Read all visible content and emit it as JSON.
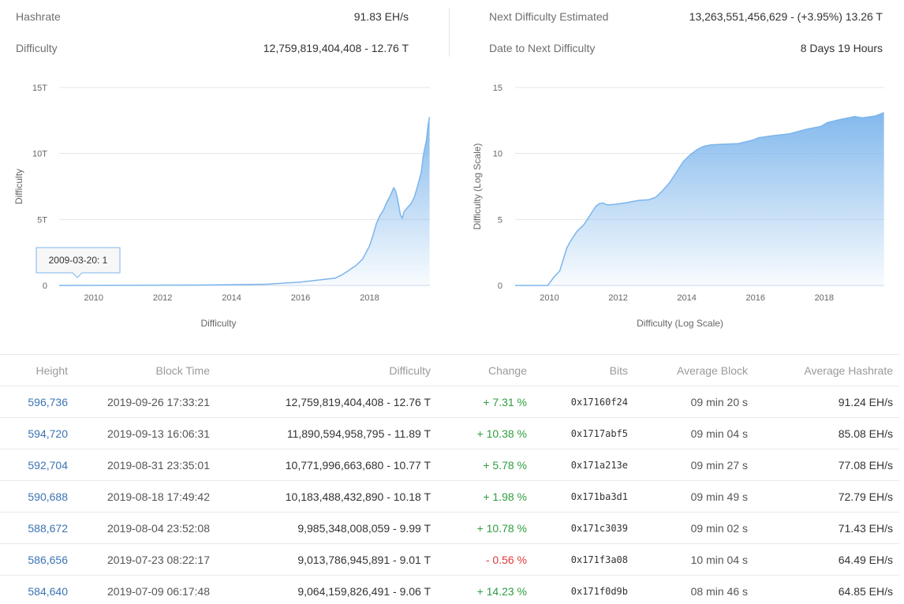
{
  "stats": {
    "hashrate_label": "Hashrate",
    "hashrate_value": "91.83 EH/s",
    "difficulty_label": "Difficulty",
    "difficulty_value": "12,759,819,404,408 - 12.76 T",
    "next_label": "Next Difficulty Estimated",
    "next_value": "13,263,551,456,629 - (+3.95%) 13.26 T",
    "date_label": "Date to Next Difficulty",
    "date_value": "8 Days 19 Hours"
  },
  "chart_data": [
    {
      "type": "area",
      "title": "",
      "ylabel": "Difficulty",
      "xlabel": "Difficulty",
      "xlim": [
        2009.0,
        2019.75
      ],
      "ylim": [
        0,
        15
      ],
      "y_ticks": [
        "0",
        "5T",
        "10T",
        "15T"
      ],
      "x_ticks": [
        "2010",
        "2012",
        "2014",
        "2016",
        "2018"
      ],
      "tooltip": "2009-03-20: 1",
      "series": [
        {
          "x": [
            2009.0,
            2013.0,
            2015.0,
            2016.0,
            2016.5,
            2017.0,
            2017.2,
            2017.4,
            2017.6,
            2017.8,
            2017.9,
            2018.0,
            2018.1,
            2018.2,
            2018.3,
            2018.4,
            2018.5,
            2018.6,
            2018.7,
            2018.75,
            2018.8,
            2018.85,
            2018.9,
            2018.95,
            2019.0,
            2019.1,
            2019.2,
            2019.3,
            2019.4,
            2019.5,
            2019.55,
            2019.6,
            2019.65,
            2019.7,
            2019.74
          ],
          "values": [
            0,
            0.03,
            0.09,
            0.25,
            0.4,
            0.55,
            0.8,
            1.15,
            1.5,
            2.0,
            2.5,
            3.0,
            3.8,
            4.7,
            5.3,
            5.7,
            6.3,
            6.8,
            7.4,
            7.2,
            6.7,
            6.0,
            5.3,
            5.1,
            5.6,
            5.9,
            6.2,
            6.7,
            7.6,
            8.6,
            9.7,
            10.4,
            11.0,
            12.2,
            12.76
          ]
        }
      ]
    },
    {
      "type": "area",
      "title": "",
      "ylabel": "Difficulty (Log Scale)",
      "xlabel": "Difficulty (Log Scale)",
      "xlim": [
        2009.0,
        2019.75
      ],
      "ylim": [
        0,
        15
      ],
      "y_ticks": [
        "0",
        "5",
        "10",
        "15"
      ],
      "x_ticks": [
        "2010",
        "2012",
        "2014",
        "2016",
        "2018"
      ],
      "series": [
        {
          "x": [
            2009.0,
            2009.95,
            2010.15,
            2010.3,
            2010.5,
            2010.6,
            2010.8,
            2011.0,
            2011.2,
            2011.35,
            2011.45,
            2011.55,
            2011.7,
            2011.9,
            2012.2,
            2012.6,
            2012.9,
            2013.1,
            2013.3,
            2013.5,
            2013.7,
            2013.9,
            2014.1,
            2014.3,
            2014.5,
            2014.7,
            2015.0,
            2015.5,
            2015.9,
            2016.1,
            2016.5,
            2017.0,
            2017.5,
            2017.9,
            2018.1,
            2018.5,
            2018.9,
            2019.1,
            2019.5,
            2019.74
          ],
          "values": [
            0,
            0,
            0.7,
            1.1,
            2.8,
            3.3,
            4.1,
            4.6,
            5.4,
            6.0,
            6.2,
            6.25,
            6.1,
            6.15,
            6.25,
            6.45,
            6.5,
            6.7,
            7.2,
            7.8,
            8.6,
            9.4,
            9.9,
            10.3,
            10.55,
            10.65,
            10.7,
            10.75,
            11.0,
            11.2,
            11.35,
            11.5,
            11.85,
            12.05,
            12.35,
            12.6,
            12.8,
            12.7,
            12.85,
            13.1
          ]
        }
      ]
    }
  ],
  "table": {
    "headers": {
      "height": "Height",
      "time": "Block Time",
      "difficulty": "Difficulty",
      "change": "Change",
      "bits": "Bits",
      "avg_block": "Average Block",
      "avg_hash": "Average Hashrate"
    },
    "rows": [
      {
        "height": "596,736",
        "time": "2019-09-26 17:33:21",
        "difficulty": "12,759,819,404,408 - 12.76 T",
        "change": "+ 7.31 %",
        "change_dir": "pos",
        "bits": "0x17160f24",
        "avg_block": "09 min 20 s",
        "avg_hash": "91.24 EH/s"
      },
      {
        "height": "594,720",
        "time": "2019-09-13 16:06:31",
        "difficulty": "11,890,594,958,795 - 11.89 T",
        "change": "+ 10.38 %",
        "change_dir": "pos",
        "bits": "0x1717abf5",
        "avg_block": "09 min 04 s",
        "avg_hash": "85.08 EH/s"
      },
      {
        "height": "592,704",
        "time": "2019-08-31 23:35:01",
        "difficulty": "10,771,996,663,680 - 10.77 T",
        "change": "+ 5.78 %",
        "change_dir": "pos",
        "bits": "0x171a213e",
        "avg_block": "09 min 27 s",
        "avg_hash": "77.08 EH/s"
      },
      {
        "height": "590,688",
        "time": "2019-08-18 17:49:42",
        "difficulty": "10,183,488,432,890 - 10.18 T",
        "change": "+ 1.98 %",
        "change_dir": "pos",
        "bits": "0x171ba3d1",
        "avg_block": "09 min 49 s",
        "avg_hash": "72.79 EH/s"
      },
      {
        "height": "588,672",
        "time": "2019-08-04 23:52:08",
        "difficulty": "9,985,348,008,059 - 9.99 T",
        "change": "+ 10.78 %",
        "change_dir": "pos",
        "bits": "0x171c3039",
        "avg_block": "09 min 02 s",
        "avg_hash": "71.43 EH/s"
      },
      {
        "height": "586,656",
        "time": "2019-07-23 08:22:17",
        "difficulty": "9,013,786,945,891 - 9.01 T",
        "change": "- 0.56 %",
        "change_dir": "neg",
        "bits": "0x171f3a08",
        "avg_block": "10 min 04 s",
        "avg_hash": "64.49 EH/s"
      },
      {
        "height": "584,640",
        "time": "2019-07-09 06:17:48",
        "difficulty": "9,064,159,826,491 - 9.06 T",
        "change": "+ 14.23 %",
        "change_dir": "pos",
        "bits": "0x171f0d9b",
        "avg_block": "08 min 46 s",
        "avg_hash": "64.85 EH/s"
      }
    ]
  }
}
